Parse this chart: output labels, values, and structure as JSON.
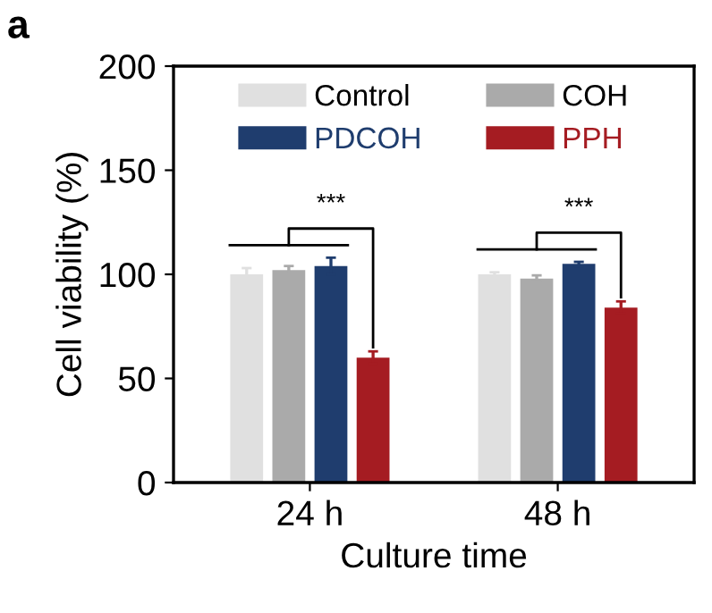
{
  "chart_data": {
    "type": "bar",
    "title": "a",
    "xlabel": "Culture time",
    "ylabel": "Cell viability (%)",
    "categories": [
      "24 h",
      "48 h"
    ],
    "series": [
      {
        "name": "Control",
        "color": "#e0e0e0",
        "values": [
          100,
          100
        ],
        "errors": [
          3,
          1
        ]
      },
      {
        "name": "COH",
        "color": "#aaaaaa",
        "values": [
          102,
          98
        ],
        "errors": [
          2,
          1.5
        ]
      },
      {
        "name": "PDCOH",
        "color": "#1f3d6e",
        "values": [
          104,
          105
        ],
        "errors": [
          4,
          1
        ]
      },
      {
        "name": "PPH",
        "color": "#a51c22",
        "values": [
          60,
          84
        ],
        "errors": [
          3,
          3
        ]
      }
    ],
    "ylim": [
      0,
      200
    ],
    "yticks": [
      0,
      50,
      100,
      150,
      200
    ],
    "grid": false,
    "legend": "top",
    "annotations": [
      "***",
      "***"
    ]
  }
}
